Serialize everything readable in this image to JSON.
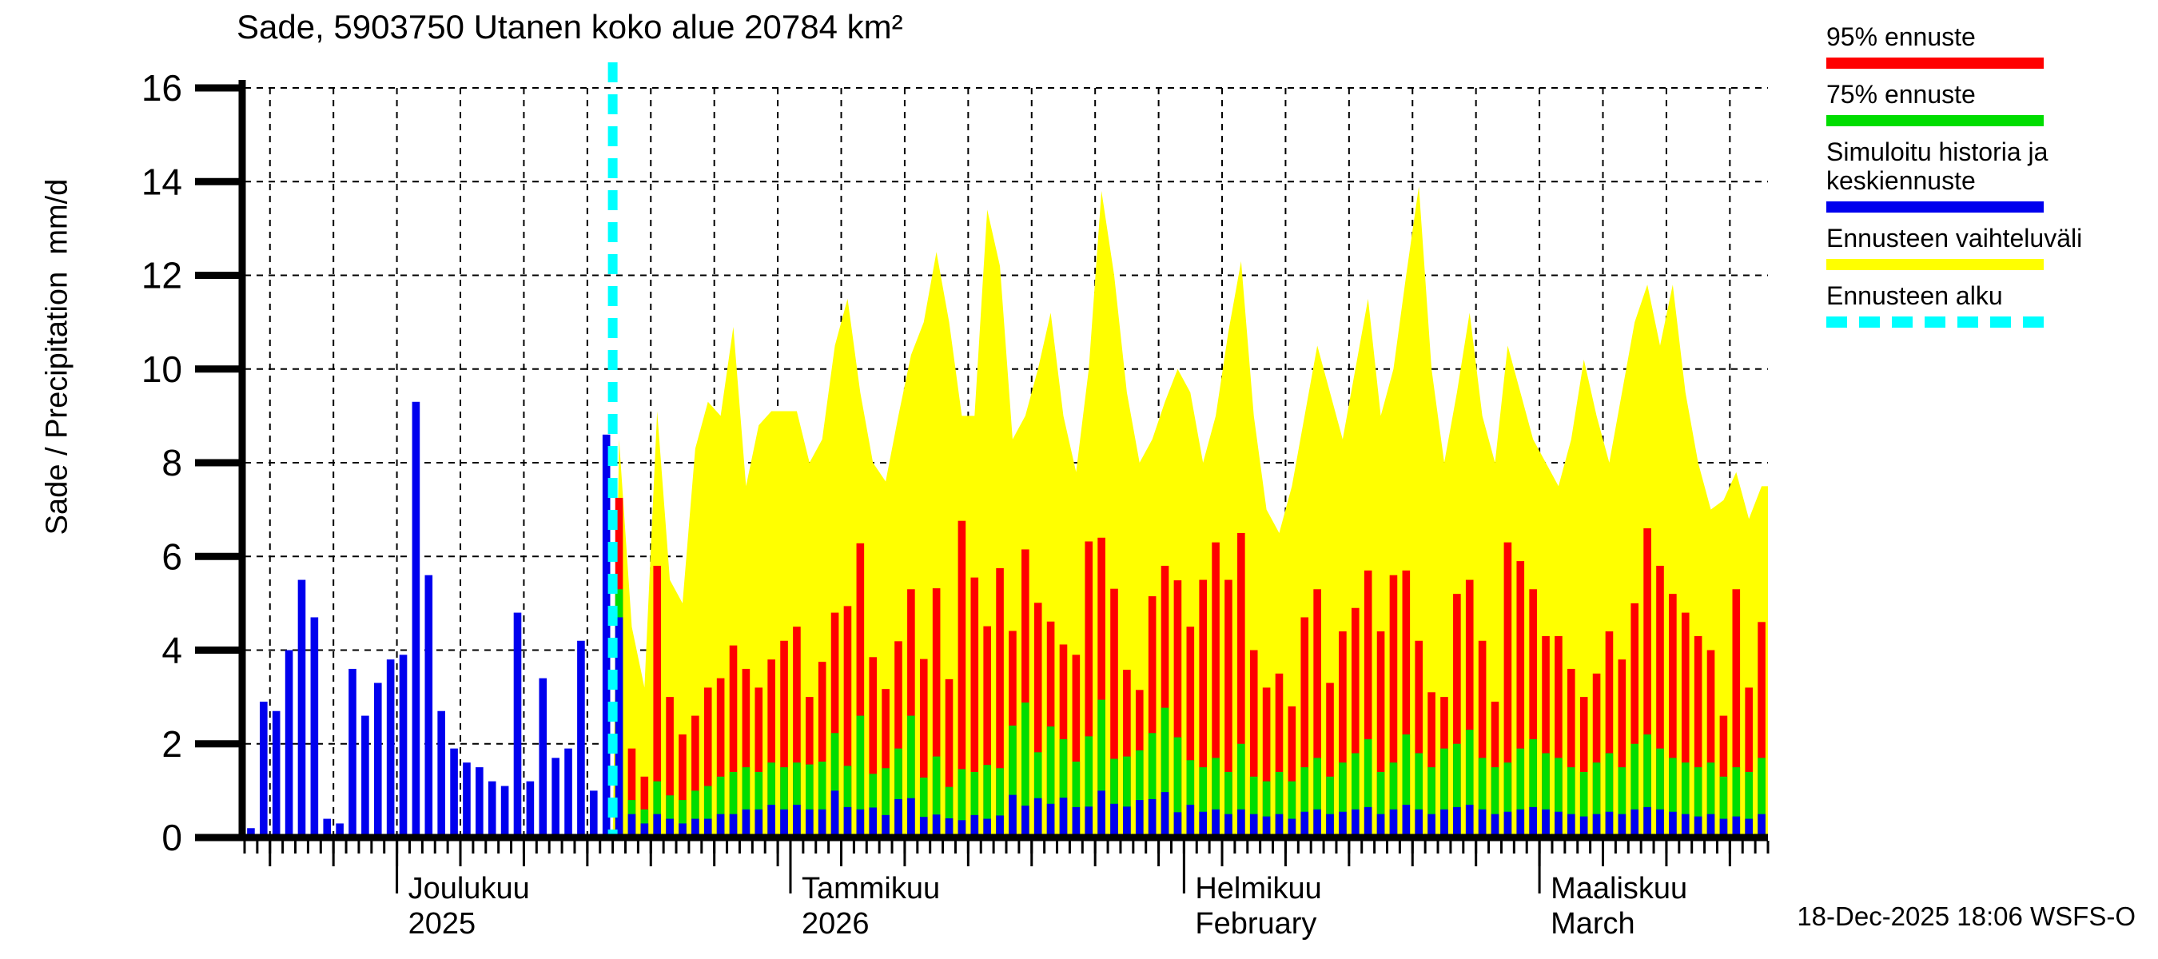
{
  "title": "Sade, 5903750 Utanen koko alue 20784 km²",
  "timestamp": "18-Dec-2025 18:06 WSFS-O",
  "y_axis": {
    "label": "Sade / Precipitation  mm/d",
    "ticks": [
      0,
      2,
      4,
      6,
      8,
      10,
      12,
      14,
      16
    ],
    "max": 16
  },
  "x_axis": {
    "months": [
      {
        "label": "Joulukuu",
        "sublabel": "2025",
        "start_day": 12
      },
      {
        "label": "Tammikuu",
        "sublabel": "2026",
        "start_day": 43
      },
      {
        "label": "Helmikuu",
        "sublabel": "February",
        "start_day": 74
      },
      {
        "label": "Maaliskuu",
        "sublabel": "March",
        "start_day": 102
      }
    ]
  },
  "legend": [
    {
      "label": "95% ennuste",
      "color": "#ff0000",
      "style": "solid"
    },
    {
      "label": "75% ennuste",
      "color": "#00dd00",
      "style": "solid"
    },
    {
      "label": "Simuloitu historia ja\nkeskiennuste",
      "color": "#0000ee",
      "style": "solid"
    },
    {
      "label": "Ennusteen vaihteluväli",
      "color": "#ffff00",
      "style": "solid"
    },
    {
      "label": "Ennusteen alku",
      "color": "#00ffff",
      "style": "dashed"
    }
  ],
  "colors": {
    "history_bar": "#0000ee",
    "median_bar": "#0000ee",
    "p75_bar": "#00dd00",
    "p95_bar": "#ff0000",
    "range_area": "#ffff00",
    "forecast_start_line": "#00ffff",
    "axis": "#000000",
    "grid": "#000000",
    "background": "#ffffff"
  },
  "chart_data": {
    "type": "bar",
    "title": "Sade, 5903750 Utanen koko alue 20784 km²",
    "ylabel": "Sade / Precipitation  mm/d",
    "ylim": [
      0,
      16
    ],
    "grid": true,
    "legend_position": "right-outside",
    "total_days": 120,
    "start_date": "2025-11-19",
    "forecast_start_date": "2025-12-18",
    "forecast_start_index": 29,
    "grid_vline_first_day": 2,
    "grid_vline_step_days": 5,
    "history_mm": [
      0.2,
      2.9,
      2.7,
      4.0,
      5.5,
      4.7,
      0.4,
      0.3,
      3.6,
      2.6,
      3.3,
      3.8,
      3.9,
      9.3,
      5.6,
      2.7,
      1.9,
      1.6,
      1.5,
      1.2,
      1.1,
      4.8,
      1.2,
      3.4,
      1.7,
      1.9,
      4.2,
      1.0,
      8.6
    ],
    "forecast": {
      "median_mm": [
        4.7,
        0.5,
        0.3,
        0.5,
        0.4,
        0.3,
        0.4,
        0.4,
        0.5,
        0.5,
        0.6,
        0.6,
        0.7,
        0.6,
        0.7,
        0.6,
        0.6,
        1.0,
        0.65,
        0.6,
        0.64,
        0.48,
        0.82,
        0.84,
        0.44,
        0.49,
        0.41,
        0.37,
        0.48,
        0.4,
        0.47,
        0.91,
        0.68,
        0.84,
        0.72,
        0.85,
        0.65,
        0.66,
        1.0,
        0.72,
        0.66,
        0.8,
        0.82,
        0.97,
        0.54,
        0.7,
        0.55,
        0.6,
        0.5,
        0.6,
        0.5,
        0.45,
        0.5,
        0.4,
        0.55,
        0.6,
        0.5,
        0.55,
        0.6,
        0.65,
        0.5,
        0.6,
        0.7,
        0.6,
        0.5,
        0.6,
        0.65,
        0.7,
        0.6,
        0.5,
        0.55,
        0.6,
        0.65,
        0.6,
        0.55,
        0.5,
        0.45,
        0.5,
        0.55,
        0.5,
        0.6,
        0.65,
        0.6,
        0.55,
        0.5,
        0.45,
        0.5,
        0.4,
        0.45,
        0.4,
        0.5
      ],
      "p75_mm": [
        5.3,
        0.8,
        0.6,
        1.2,
        0.9,
        0.8,
        1.0,
        1.1,
        1.3,
        1.4,
        1.5,
        1.4,
        1.6,
        1.5,
        1.6,
        1.56,
        1.62,
        2.23,
        1.53,
        2.6,
        1.36,
        1.48,
        1.9,
        2.6,
        1.28,
        1.73,
        1.08,
        1.46,
        1.4,
        1.55,
        1.48,
        2.39,
        2.88,
        1.82,
        2.37,
        2.1,
        1.62,
        2.16,
        2.94,
        1.68,
        1.73,
        1.86,
        2.23,
        2.77,
        2.14,
        1.65,
        1.5,
        1.7,
        1.4,
        2.0,
        1.3,
        1.2,
        1.4,
        1.2,
        1.5,
        1.7,
        1.3,
        1.6,
        1.8,
        2.1,
        1.4,
        1.6,
        2.2,
        1.8,
        1.5,
        1.9,
        2.0,
        2.3,
        1.7,
        1.5,
        1.6,
        1.9,
        2.1,
        1.8,
        1.7,
        1.5,
        1.4,
        1.6,
        1.8,
        1.5,
        2.0,
        2.2,
        1.9,
        1.7,
        1.6,
        1.5,
        1.6,
        1.3,
        1.5,
        1.4,
        1.7
      ],
      "p95_mm": [
        7.25,
        1.9,
        1.3,
        5.8,
        3.0,
        2.2,
        2.6,
        3.2,
        3.4,
        4.1,
        3.6,
        3.2,
        3.8,
        4.2,
        4.5,
        3.0,
        3.75,
        4.8,
        4.94,
        6.28,
        3.85,
        3.17,
        4.19,
        5.3,
        3.81,
        5.32,
        3.38,
        6.76,
        5.55,
        4.51,
        5.75,
        4.41,
        6.15,
        5.01,
        4.61,
        4.12,
        3.9,
        6.32,
        6.4,
        5.31,
        3.58,
        3.15,
        5.15,
        5.8,
        5.49,
        4.5,
        5.5,
        6.3,
        5.5,
        6.5,
        4.0,
        3.2,
        3.5,
        2.8,
        4.7,
        5.3,
        3.3,
        4.4,
        4.9,
        5.7,
        4.4,
        5.6,
        5.7,
        4.2,
        3.1,
        3.0,
        5.2,
        5.5,
        4.2,
        2.9,
        6.3,
        5.9,
        5.3,
        4.3,
        4.3,
        3.6,
        3.0,
        3.5,
        4.4,
        3.8,
        5.0,
        6.6,
        5.8,
        5.2,
        4.8,
        4.3,
        4.0,
        2.6,
        5.3,
        3.2,
        4.6
      ],
      "range_max_mm": [
        8.5,
        4.5,
        3.2,
        9.1,
        5.5,
        5.0,
        8.3,
        9.3,
        9.0,
        10.9,
        7.5,
        8.8,
        9.1,
        9.1,
        9.1,
        8.0,
        8.5,
        10.5,
        11.5,
        9.5,
        8.0,
        7.6,
        9.0,
        10.3,
        11.0,
        12.5,
        11.0,
        9.0,
        9.0,
        13.4,
        12.2,
        8.5,
        9.0,
        10.0,
        11.2,
        9.0,
        7.8,
        10.0,
        13.8,
        12.0,
        9.5,
        8.0,
        8.5,
        9.3,
        10.0,
        9.5,
        8.0,
        9.0,
        10.8,
        12.3,
        9.0,
        7.0,
        6.5,
        7.5,
        9.0,
        10.5,
        9.5,
        8.5,
        10.0,
        11.5,
        9.0,
        10.0,
        12.0,
        13.9,
        10.0,
        8.0,
        9.5,
        11.2,
        9.0,
        8.0,
        10.5,
        9.5,
        8.5,
        8.0,
        7.5,
        8.5,
        10.2,
        9.0,
        8.0,
        9.5,
        11.0,
        11.8,
        10.5,
        11.8,
        9.5,
        8.0,
        7.0,
        7.2,
        7.8,
        6.8,
        7.5
      ]
    }
  }
}
